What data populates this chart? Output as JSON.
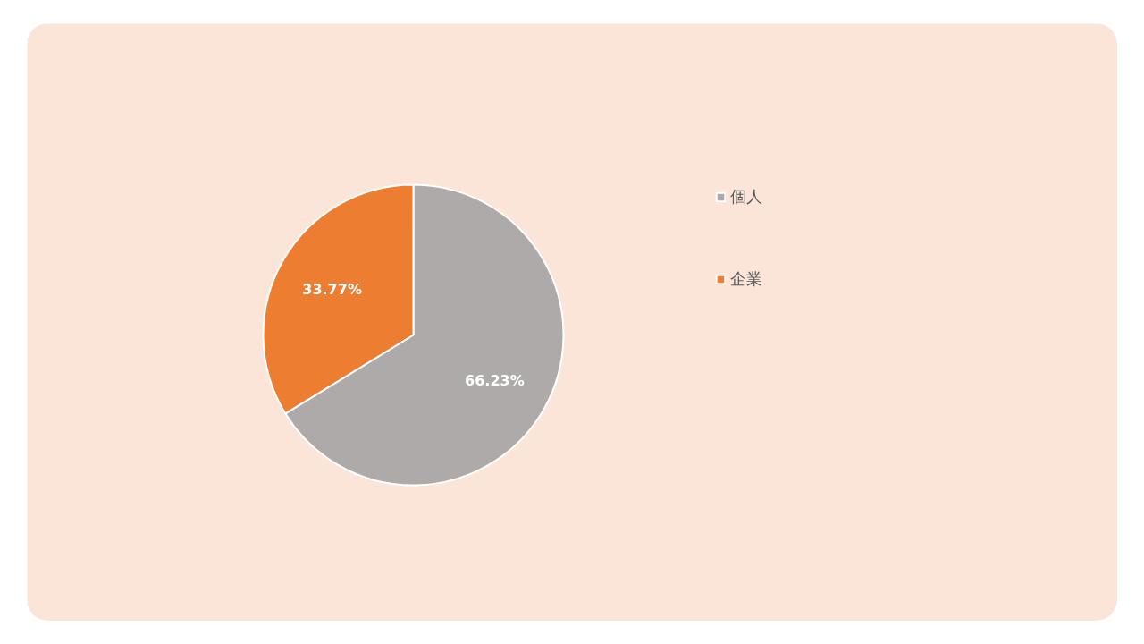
{
  "chart_data": {
    "type": "pie",
    "categories": [
      "個人",
      "企業"
    ],
    "values": [
      66.23,
      33.77
    ],
    "colors": [
      "#aeaaa9",
      "#ed7d31"
    ],
    "value_labels": [
      "66.23%",
      "33.77%"
    ],
    "legend": "right"
  }
}
